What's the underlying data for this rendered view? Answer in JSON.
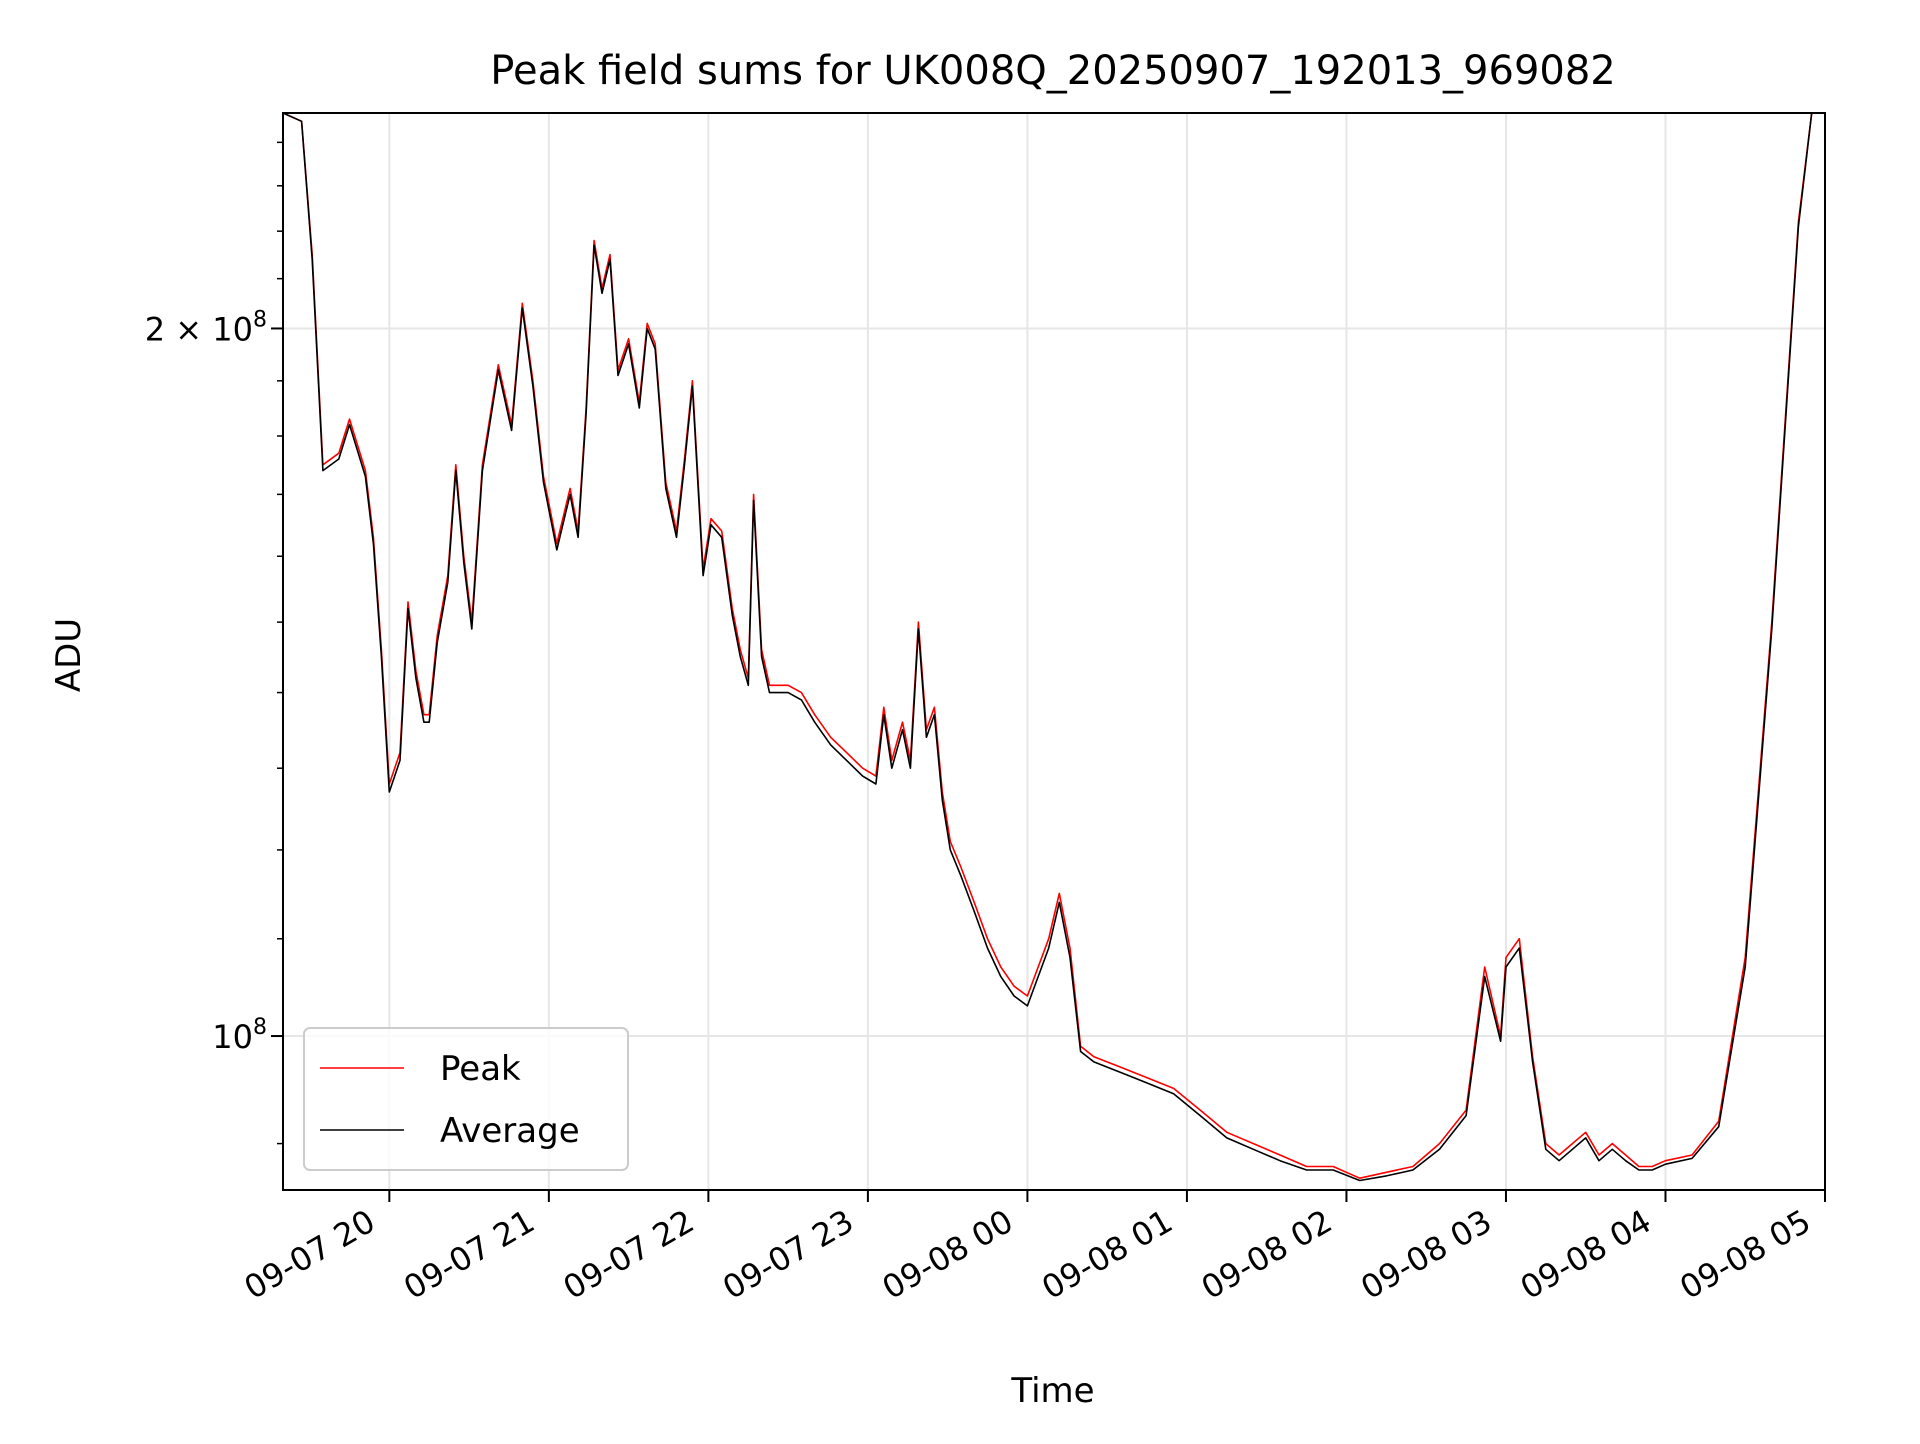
{
  "chart_data": {
    "type": "line",
    "title": "Peak field sums for UK008Q_20250907_192013_969082",
    "xlabel": "Time",
    "ylabel": "ADU",
    "y_scale": "log",
    "ylim": [
      86000000,
      247000000
    ],
    "xlim": [
      "2025-09-07 19:20",
      "2025-09-08 05:00"
    ],
    "x_ticks": [
      "09-07 20",
      "09-07 21",
      "09-07 22",
      "09-07 23",
      "09-08 00",
      "09-08 01",
      "09-08 02",
      "09-08 03",
      "09-08 04",
      "09-08 05"
    ],
    "x_tick_times": [
      "2025-09-07 20:00",
      "2025-09-07 21:00",
      "2025-09-07 22:00",
      "2025-09-07 23:00",
      "2025-09-08 00:00",
      "2025-09-08 01:00",
      "2025-09-08 02:00",
      "2025-09-08 03:00",
      "2025-09-08 04:00",
      "2025-09-08 05:00"
    ],
    "y_ticks": [
      {
        "value": 200000000,
        "base": "2 × 10",
        "exp": "8"
      },
      {
        "value": 100000000,
        "base": "10",
        "exp": "8"
      }
    ],
    "grid": true,
    "legend_position": "lower-left",
    "series": [
      {
        "name": "Peak",
        "color": "#ff0000",
        "points": [
          [
            "2025-09-07 19:20",
            247000000
          ],
          [
            "2025-09-07 19:27",
            245000000
          ],
          [
            "2025-09-07 19:31",
            215000000
          ],
          [
            "2025-09-07 19:35",
            175000000
          ],
          [
            "2025-09-07 19:41",
            177000000
          ],
          [
            "2025-09-07 19:45",
            183000000
          ],
          [
            "2025-09-07 19:51",
            174000000
          ],
          [
            "2025-09-07 19:54",
            163000000
          ],
          [
            "2025-09-07 19:57",
            146000000
          ],
          [
            "2025-09-07 20:00",
            128000000
          ],
          [
            "2025-09-07 20:04",
            132000000
          ],
          [
            "2025-09-07 20:07",
            153000000
          ],
          [
            "2025-09-07 20:10",
            143000000
          ],
          [
            "2025-09-07 20:13",
            137000000
          ],
          [
            "2025-09-07 20:15",
            137000000
          ],
          [
            "2025-09-07 20:18",
            148000000
          ],
          [
            "2025-09-07 20:22",
            157000000
          ],
          [
            "2025-09-07 20:25",
            175000000
          ],
          [
            "2025-09-07 20:28",
            160000000
          ],
          [
            "2025-09-07 20:31",
            150000000
          ],
          [
            "2025-09-07 20:35",
            175000000
          ],
          [
            "2025-09-07 20:41",
            193000000
          ],
          [
            "2025-09-07 20:46",
            182000000
          ],
          [
            "2025-09-07 20:50",
            205000000
          ],
          [
            "2025-09-07 20:54",
            190000000
          ],
          [
            "2025-09-07 20:58",
            173000000
          ],
          [
            "2025-09-07 21:03",
            162000000
          ],
          [
            "2025-09-07 21:08",
            171000000
          ],
          [
            "2025-09-07 21:11",
            164000000
          ],
          [
            "2025-09-07 21:14",
            185000000
          ],
          [
            "2025-09-07 21:17",
            218000000
          ],
          [
            "2025-09-07 21:20",
            208000000
          ],
          [
            "2025-09-07 21:23",
            215000000
          ],
          [
            "2025-09-07 21:26",
            192000000
          ],
          [
            "2025-09-07 21:30",
            198000000
          ],
          [
            "2025-09-07 21:34",
            186000000
          ],
          [
            "2025-09-07 21:37",
            201000000
          ],
          [
            "2025-09-07 21:40",
            197000000
          ],
          [
            "2025-09-07 21:44",
            172000000
          ],
          [
            "2025-09-07 21:48",
            164000000
          ],
          [
            "2025-09-07 21:51",
            176000000
          ],
          [
            "2025-09-07 21:54",
            190000000
          ],
          [
            "2025-09-07 21:58",
            158000000
          ],
          [
            "2025-09-07 22:01",
            166000000
          ],
          [
            "2025-09-07 22:05",
            164000000
          ],
          [
            "2025-09-07 22:09",
            152000000
          ],
          [
            "2025-09-07 22:12",
            146000000
          ],
          [
            "2025-09-07 22:15",
            142000000
          ],
          [
            "2025-09-07 22:17",
            170000000
          ],
          [
            "2025-09-07 22:20",
            146000000
          ],
          [
            "2025-09-07 22:23",
            141000000
          ],
          [
            "2025-09-07 22:26",
            141000000
          ],
          [
            "2025-09-07 22:30",
            141000000
          ],
          [
            "2025-09-07 22:35",
            140000000
          ],
          [
            "2025-09-07 22:40",
            137000000
          ],
          [
            "2025-09-07 22:46",
            134000000
          ],
          [
            "2025-09-07 22:52",
            132000000
          ],
          [
            "2025-09-07 22:58",
            130000000
          ],
          [
            "2025-09-07 23:03",
            129000000
          ],
          [
            "2025-09-07 23:06",
            138000000
          ],
          [
            "2025-09-07 23:09",
            131000000
          ],
          [
            "2025-09-07 23:13",
            136000000
          ],
          [
            "2025-09-07 23:16",
            131000000
          ],
          [
            "2025-09-07 23:19",
            150000000
          ],
          [
            "2025-09-07 23:22",
            135000000
          ],
          [
            "2025-09-07 23:25",
            138000000
          ],
          [
            "2025-09-07 23:28",
            127000000
          ],
          [
            "2025-09-07 23:31",
            121000000
          ],
          [
            "2025-09-07 23:35",
            118000000
          ],
          [
            "2025-09-07 23:40",
            114000000
          ],
          [
            "2025-09-07 23:45",
            110000000
          ],
          [
            "2025-09-07 23:50",
            107000000
          ],
          [
            "2025-09-07 23:55",
            105000000
          ],
          [
            "2025-09-08 00:00",
            104000000
          ],
          [
            "2025-09-08 00:08",
            110000000
          ],
          [
            "2025-09-08 00:12",
            115000000
          ],
          [
            "2025-09-08 00:16",
            109000000
          ],
          [
            "2025-09-08 00:20",
            99000000
          ],
          [
            "2025-09-08 00:25",
            98000000
          ],
          [
            "2025-09-08 00:35",
            97000000
          ],
          [
            "2025-09-08 00:45",
            96000000
          ],
          [
            "2025-09-08 00:55",
            95000000
          ],
          [
            "2025-09-08 01:05",
            93000000
          ],
          [
            "2025-09-08 01:15",
            91000000
          ],
          [
            "2025-09-08 01:25",
            90000000
          ],
          [
            "2025-09-08 01:35",
            89000000
          ],
          [
            "2025-09-08 01:45",
            88000000
          ],
          [
            "2025-09-08 01:55",
            88000000
          ],
          [
            "2025-09-08 02:05",
            87000000
          ],
          [
            "2025-09-08 02:15",
            87500000
          ],
          [
            "2025-09-08 02:25",
            88000000
          ],
          [
            "2025-09-08 02:35",
            90000000
          ],
          [
            "2025-09-08 02:45",
            93000000
          ],
          [
            "2025-09-08 02:52",
            107000000
          ],
          [
            "2025-09-08 02:58",
            100000000
          ],
          [
            "2025-09-08 03:00",
            108000000
          ],
          [
            "2025-09-08 03:05",
            110000000
          ],
          [
            "2025-09-08 03:10",
            98000000
          ],
          [
            "2025-09-08 03:15",
            90000000
          ],
          [
            "2025-09-08 03:20",
            89000000
          ],
          [
            "2025-09-08 03:25",
            90000000
          ],
          [
            "2025-09-08 03:30",
            91000000
          ],
          [
            "2025-09-08 03:35",
            89000000
          ],
          [
            "2025-09-08 03:40",
            90000000
          ],
          [
            "2025-09-08 03:45",
            89000000
          ],
          [
            "2025-09-08 03:50",
            88000000
          ],
          [
            "2025-09-08 03:55",
            88000000
          ],
          [
            "2025-09-08 04:00",
            88500000
          ],
          [
            "2025-09-08 04:10",
            89000000
          ],
          [
            "2025-09-08 04:20",
            92000000
          ],
          [
            "2025-09-08 04:30",
            108000000
          ],
          [
            "2025-09-08 04:40",
            150000000
          ],
          [
            "2025-09-08 04:50",
            222000000
          ],
          [
            "2025-09-08 04:55",
            247000000
          ],
          [
            "2025-09-08 05:00",
            247000000
          ]
        ]
      },
      {
        "name": "Average",
        "color": "#000000",
        "points": [
          [
            "2025-09-07 19:20",
            247000000
          ],
          [
            "2025-09-07 19:27",
            245000000
          ],
          [
            "2025-09-07 19:31",
            214000000
          ],
          [
            "2025-09-07 19:35",
            174000000
          ],
          [
            "2025-09-07 19:41",
            176000000
          ],
          [
            "2025-09-07 19:45",
            182000000
          ],
          [
            "2025-09-07 19:51",
            173000000
          ],
          [
            "2025-09-07 19:54",
            162000000
          ],
          [
            "2025-09-07 19:57",
            145000000
          ],
          [
            "2025-09-07 20:00",
            127000000
          ],
          [
            "2025-09-07 20:04",
            131000000
          ],
          [
            "2025-09-07 20:07",
            152000000
          ],
          [
            "2025-09-07 20:10",
            142000000
          ],
          [
            "2025-09-07 20:13",
            136000000
          ],
          [
            "2025-09-07 20:15",
            136000000
          ],
          [
            "2025-09-07 20:18",
            147000000
          ],
          [
            "2025-09-07 20:22",
            156000000
          ],
          [
            "2025-09-07 20:25",
            174000000
          ],
          [
            "2025-09-07 20:28",
            159000000
          ],
          [
            "2025-09-07 20:31",
            149000000
          ],
          [
            "2025-09-07 20:35",
            174000000
          ],
          [
            "2025-09-07 20:41",
            192000000
          ],
          [
            "2025-09-07 20:46",
            181000000
          ],
          [
            "2025-09-07 20:50",
            204000000
          ],
          [
            "2025-09-07 20:54",
            189000000
          ],
          [
            "2025-09-07 20:58",
            172000000
          ],
          [
            "2025-09-07 21:03",
            161000000
          ],
          [
            "2025-09-07 21:08",
            170000000
          ],
          [
            "2025-09-07 21:11",
            163000000
          ],
          [
            "2025-09-07 21:14",
            184000000
          ],
          [
            "2025-09-07 21:17",
            217000000
          ],
          [
            "2025-09-07 21:20",
            207000000
          ],
          [
            "2025-09-07 21:23",
            214000000
          ],
          [
            "2025-09-07 21:26",
            191000000
          ],
          [
            "2025-09-07 21:30",
            197000000
          ],
          [
            "2025-09-07 21:34",
            185000000
          ],
          [
            "2025-09-07 21:37",
            200000000
          ],
          [
            "2025-09-07 21:40",
            196000000
          ],
          [
            "2025-09-07 21:44",
            171000000
          ],
          [
            "2025-09-07 21:48",
            163000000
          ],
          [
            "2025-09-07 21:51",
            175000000
          ],
          [
            "2025-09-07 21:54",
            189000000
          ],
          [
            "2025-09-07 21:58",
            157000000
          ],
          [
            "2025-09-07 22:01",
            165000000
          ],
          [
            "2025-09-07 22:05",
            163000000
          ],
          [
            "2025-09-07 22:09",
            151000000
          ],
          [
            "2025-09-07 22:12",
            145000000
          ],
          [
            "2025-09-07 22:15",
            141000000
          ],
          [
            "2025-09-07 22:17",
            169000000
          ],
          [
            "2025-09-07 22:20",
            145000000
          ],
          [
            "2025-09-07 22:23",
            140000000
          ],
          [
            "2025-09-07 22:26",
            140000000
          ],
          [
            "2025-09-07 22:30",
            140000000
          ],
          [
            "2025-09-07 22:35",
            139000000
          ],
          [
            "2025-09-07 22:40",
            136000000
          ],
          [
            "2025-09-07 22:46",
            133000000
          ],
          [
            "2025-09-07 22:52",
            131000000
          ],
          [
            "2025-09-07 22:58",
            129000000
          ],
          [
            "2025-09-07 23:03",
            128000000
          ],
          [
            "2025-09-07 23:06",
            137000000
          ],
          [
            "2025-09-07 23:09",
            130000000
          ],
          [
            "2025-09-07 23:13",
            135000000
          ],
          [
            "2025-09-07 23:16",
            130000000
          ],
          [
            "2025-09-07 23:19",
            149000000
          ],
          [
            "2025-09-07 23:22",
            134000000
          ],
          [
            "2025-09-07 23:25",
            137000000
          ],
          [
            "2025-09-07 23:28",
            126000000
          ],
          [
            "2025-09-07 23:31",
            120000000
          ],
          [
            "2025-09-07 23:35",
            117000000
          ],
          [
            "2025-09-07 23:40",
            113000000
          ],
          [
            "2025-09-07 23:45",
            109000000
          ],
          [
            "2025-09-07 23:50",
            106000000
          ],
          [
            "2025-09-07 23:55",
            104000000
          ],
          [
            "2025-09-08 00:00",
            103000000
          ],
          [
            "2025-09-08 00:08",
            109000000
          ],
          [
            "2025-09-08 00:12",
            114000000
          ],
          [
            "2025-09-08 00:16",
            108000000
          ],
          [
            "2025-09-08 00:20",
            98500000
          ],
          [
            "2025-09-08 00:25",
            97500000
          ],
          [
            "2025-09-08 00:35",
            96500000
          ],
          [
            "2025-09-08 00:45",
            95500000
          ],
          [
            "2025-09-08 00:55",
            94500000
          ],
          [
            "2025-09-08 01:05",
            92500000
          ],
          [
            "2025-09-08 01:15",
            90500000
          ],
          [
            "2025-09-08 01:25",
            89500000
          ],
          [
            "2025-09-08 01:35",
            88500000
          ],
          [
            "2025-09-08 01:45",
            87700000
          ],
          [
            "2025-09-08 01:55",
            87700000
          ],
          [
            "2025-09-08 02:05",
            86800000
          ],
          [
            "2025-09-08 02:15",
            87200000
          ],
          [
            "2025-09-08 02:25",
            87700000
          ],
          [
            "2025-09-08 02:35",
            89500000
          ],
          [
            "2025-09-08 02:45",
            92500000
          ],
          [
            "2025-09-08 02:52",
            106000000
          ],
          [
            "2025-09-08 02:58",
            99500000
          ],
          [
            "2025-09-08 03:00",
            107000000
          ],
          [
            "2025-09-08 03:05",
            109000000
          ],
          [
            "2025-09-08 03:10",
            97500000
          ],
          [
            "2025-09-08 03:15",
            89500000
          ],
          [
            "2025-09-08 03:20",
            88500000
          ],
          [
            "2025-09-08 03:25",
            89500000
          ],
          [
            "2025-09-08 03:30",
            90500000
          ],
          [
            "2025-09-08 03:35",
            88500000
          ],
          [
            "2025-09-08 03:40",
            89500000
          ],
          [
            "2025-09-08 03:45",
            88500000
          ],
          [
            "2025-09-08 03:50",
            87700000
          ],
          [
            "2025-09-08 03:55",
            87700000
          ],
          [
            "2025-09-08 04:00",
            88200000
          ],
          [
            "2025-09-08 04:10",
            88700000
          ],
          [
            "2025-09-08 04:20",
            91500000
          ],
          [
            "2025-09-08 04:30",
            107000000
          ],
          [
            "2025-09-08 04:40",
            149000000
          ],
          [
            "2025-09-08 04:50",
            221000000
          ],
          [
            "2025-09-08 04:55",
            247000000
          ],
          [
            "2025-09-08 05:00",
            247000000
          ]
        ]
      }
    ]
  }
}
